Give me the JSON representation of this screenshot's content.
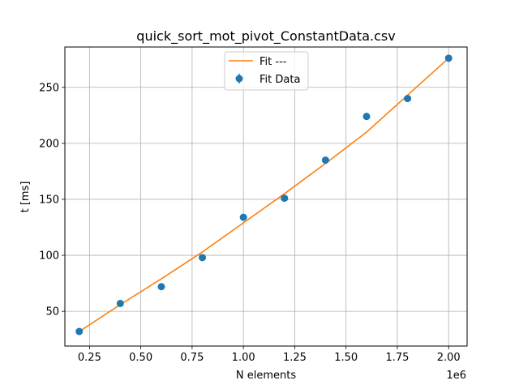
{
  "chart_data": {
    "type": "scatter",
    "title": "quick_sort_mot_pivot_ConstantData.csv",
    "xlabel": "N elements",
    "ylabel": "t [ms]",
    "x_offset_label": "1e6",
    "xlim": [
      0.13,
      2.09
    ],
    "ylim": [
      19,
      286
    ],
    "x_ticks": [
      0.25,
      0.5,
      0.75,
      1.0,
      1.25,
      1.5,
      1.75,
      2.0
    ],
    "x_tick_labels": [
      "0.25",
      "0.50",
      "0.75",
      "1.00",
      "1.25",
      "1.50",
      "1.75",
      "2.00"
    ],
    "y_ticks": [
      50,
      100,
      150,
      200,
      250
    ],
    "y_tick_labels": [
      "50",
      "100",
      "150",
      "200",
      "250"
    ],
    "grid": true,
    "legend": "top-center",
    "series": [
      {
        "name": "Fit ---",
        "kind": "line",
        "color": "#ff7f0e",
        "x": [
          0.2,
          0.4,
          0.6,
          0.8,
          1.0,
          1.2,
          1.4,
          1.6,
          1.8,
          2.0
        ],
        "y": [
          32,
          56,
          79,
          103,
          129,
          155,
          182,
          210,
          243,
          276
        ]
      },
      {
        "name": "Fit Data",
        "kind": "points",
        "color": "#1f77b4",
        "x": [
          0.2,
          0.4,
          0.6,
          0.8,
          1.0,
          1.2,
          1.4,
          1.6,
          1.8,
          2.0
        ],
        "y": [
          32,
          57,
          72,
          98,
          134,
          151,
          185,
          224,
          240,
          276
        ]
      }
    ]
  }
}
